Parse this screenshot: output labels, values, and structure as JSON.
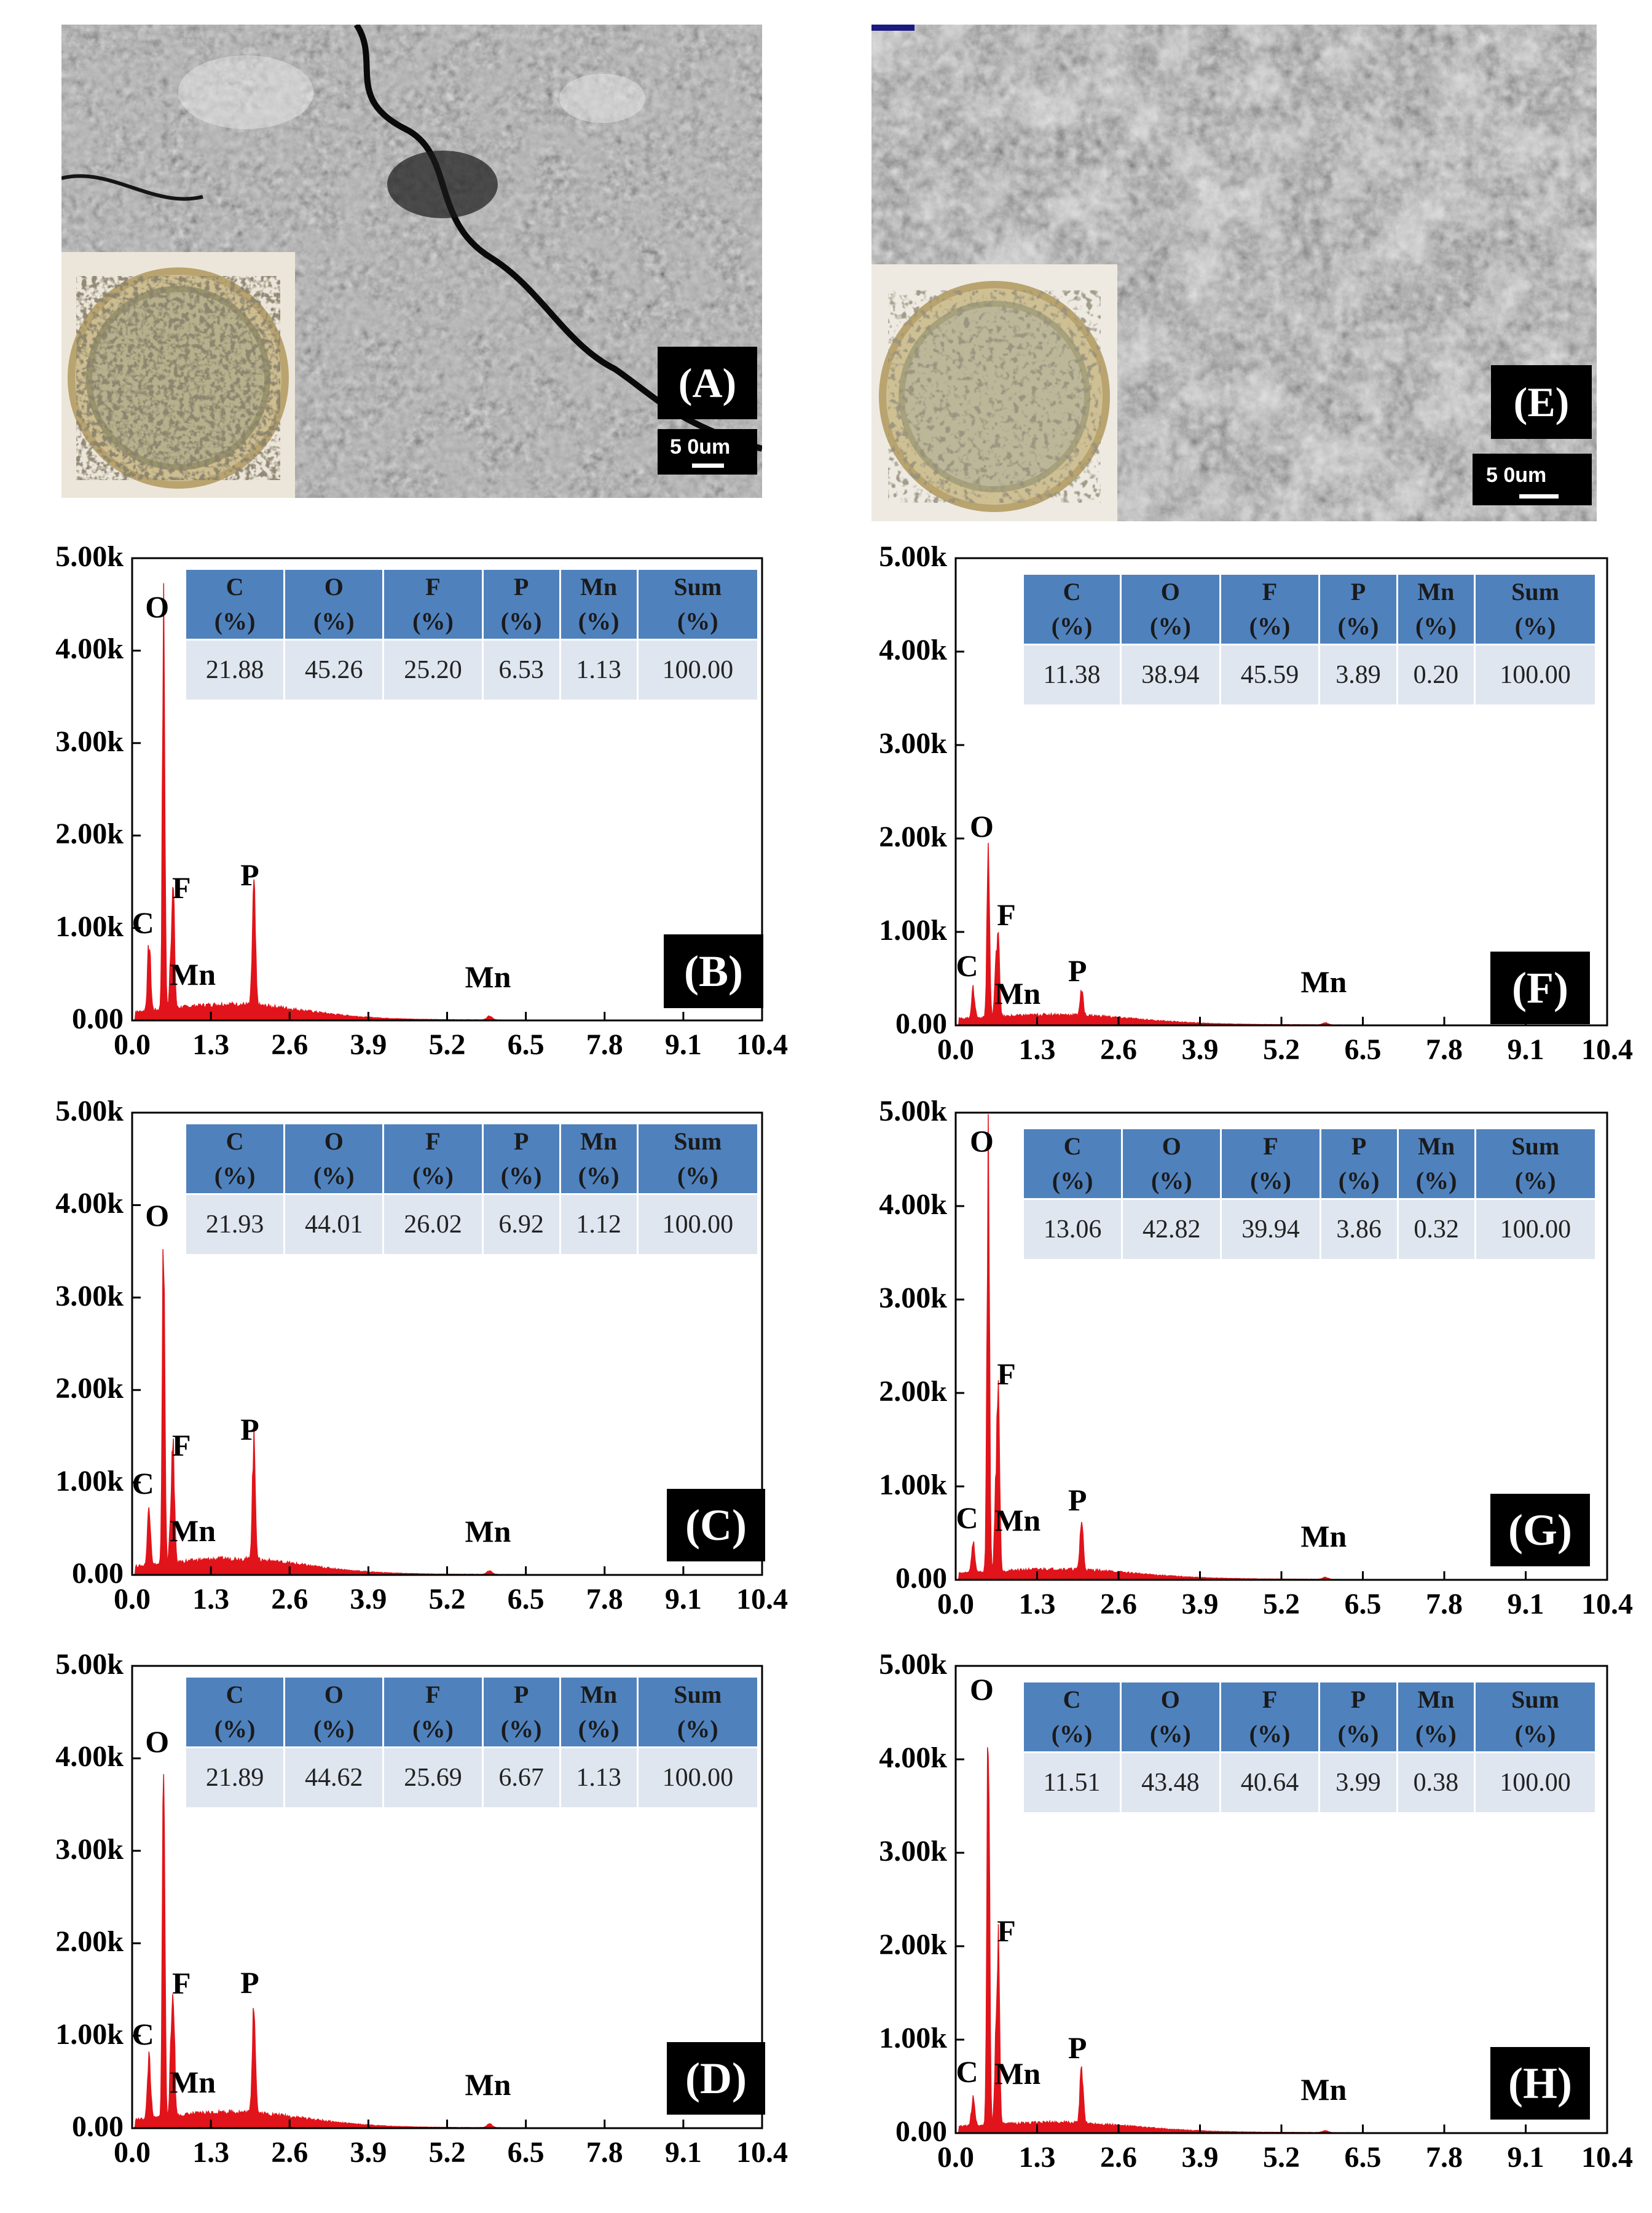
{
  "figure": {
    "sem_panels": [
      {
        "label": "(A)",
        "scale_text": "5 0um"
      },
      {
        "label": "(E)",
        "scale_text": "5 0um"
      }
    ],
    "table_headers": [
      {
        "element": "C",
        "unit": "(%)"
      },
      {
        "element": "O",
        "unit": "(%)"
      },
      {
        "element": "F",
        "unit": "(%)"
      },
      {
        "element": "P",
        "unit": "(%)"
      },
      {
        "element": "Mn",
        "unit": "(%)"
      },
      {
        "element": "Sum",
        "unit": "(%)"
      }
    ]
  },
  "chart_data": [
    {
      "type": "line",
      "panel_label": "(B)",
      "y_ticks": [
        "5.00k",
        "4.00k",
        "3.00k",
        "2.00k",
        "1.00k",
        "0.00"
      ],
      "x_ticks": [
        "0.0",
        "1.3",
        "2.6",
        "3.9",
        "5.2",
        "6.5",
        "7.8",
        "9.1",
        "10.4"
      ],
      "xlim": [
        0,
        10.4
      ],
      "ylim": [
        0,
        5000
      ],
      "peaks": [
        {
          "label": "C",
          "x": 0.28,
          "y": 720
        },
        {
          "label": "O",
          "x": 0.52,
          "y": 4120
        },
        {
          "label": "F",
          "x": 0.68,
          "y": 1150
        },
        {
          "label": "Mn",
          "x": 0.64,
          "y": 560
        },
        {
          "label": "P",
          "x": 2.01,
          "y": 1240
        },
        {
          "label": "Mn",
          "x": 5.9,
          "y": 40
        }
      ],
      "composition": [
        "21.88",
        "45.26",
        "25.20",
        "6.53",
        "1.13",
        "100.00"
      ]
    },
    {
      "type": "line",
      "panel_label": "(C)",
      "y_ticks": [
        "5.00k",
        "4.00k",
        "3.00k",
        "2.00k",
        "1.00k",
        "0.00"
      ],
      "x_ticks": [
        "0.0",
        "1.3",
        "2.6",
        "3.9",
        "5.2",
        "6.5",
        "7.8",
        "9.1",
        "10.4"
      ],
      "xlim": [
        0,
        10.4
      ],
      "ylim": [
        0,
        5000
      ],
      "peaks": [
        {
          "label": "C",
          "x": 0.28,
          "y": 650
        },
        {
          "label": "O",
          "x": 0.52,
          "y": 3540
        },
        {
          "label": "F",
          "x": 0.68,
          "y": 1120
        },
        {
          "label": "Mn",
          "x": 0.64,
          "y": 540
        },
        {
          "label": "P",
          "x": 2.01,
          "y": 1240
        },
        {
          "label": "Mn",
          "x": 5.9,
          "y": 40
        }
      ],
      "composition": [
        "21.93",
        "44.01",
        "26.02",
        "6.92",
        "1.12",
        "100.00"
      ]
    },
    {
      "type": "line",
      "panel_label": "(D)",
      "y_ticks": [
        "5.00k",
        "4.00k",
        "3.00k",
        "2.00k",
        "1.00k",
        "0.00"
      ],
      "x_ticks": [
        "0.0",
        "1.3",
        "2.6",
        "3.9",
        "5.2",
        "6.5",
        "7.8",
        "9.1",
        "10.4"
      ],
      "xlim": [
        0,
        10.4
      ],
      "ylim": [
        0,
        5000
      ],
      "peaks": [
        {
          "label": "C",
          "x": 0.28,
          "y": 680
        },
        {
          "label": "O",
          "x": 0.52,
          "y": 3830
        },
        {
          "label": "F",
          "x": 0.68,
          "y": 1280
        },
        {
          "label": "Mn",
          "x": 0.64,
          "y": 560
        },
        {
          "label": "P",
          "x": 2.01,
          "y": 1240
        },
        {
          "label": "Mn",
          "x": 5.9,
          "y": 40
        }
      ],
      "composition": [
        "21.89",
        "44.62",
        "25.69",
        "6.67",
        "1.13",
        "100.00"
      ]
    },
    {
      "type": "line",
      "panel_label": "(F)",
      "y_ticks": [
        "5.00k",
        "4.00k",
        "3.00k",
        "2.00k",
        "1.00k",
        "0.00"
      ],
      "x_ticks": [
        "0.0",
        "1.3",
        "2.6",
        "3.9",
        "5.2",
        "6.5",
        "7.8",
        "9.1",
        "10.4"
      ],
      "xlim": [
        0,
        10.4
      ],
      "ylim": [
        0,
        5000
      ],
      "peaks": [
        {
          "label": "C",
          "x": 0.28,
          "y": 300
        },
        {
          "label": "O",
          "x": 0.52,
          "y": 1780
        },
        {
          "label": "F",
          "x": 0.68,
          "y": 900
        },
        {
          "label": "Mn",
          "x": 0.64,
          "y": 400
        },
        {
          "label": "P",
          "x": 2.01,
          "y": 250
        },
        {
          "label": "Mn",
          "x": 5.9,
          "y": 20
        }
      ],
      "composition": [
        "11.38",
        "38.94",
        "45.59",
        "3.89",
        "0.20",
        "100.00"
      ]
    },
    {
      "type": "line",
      "panel_label": "(G)",
      "y_ticks": [
        "5.00k",
        "4.00k",
        "3.00k",
        "2.00k",
        "1.00k",
        "0.00"
      ],
      "x_ticks": [
        "0.0",
        "1.3",
        "2.6",
        "3.9",
        "5.2",
        "6.5",
        "7.8",
        "9.1",
        "10.4"
      ],
      "xlim": [
        0,
        10.4
      ],
      "ylim": [
        0,
        5000
      ],
      "peaks": [
        {
          "label": "C",
          "x": 0.28,
          "y": 330
        },
        {
          "label": "O",
          "x": 0.52,
          "y": 4350
        },
        {
          "label": "F",
          "x": 0.68,
          "y": 1920
        },
        {
          "label": "Mn",
          "x": 0.64,
          "y": 700
        },
        {
          "label": "P",
          "x": 2.01,
          "y": 520
        },
        {
          "label": "Mn",
          "x": 5.9,
          "y": 20
        }
      ],
      "composition": [
        "13.06",
        "42.82",
        "39.94",
        "3.86",
        "0.32",
        "100.00"
      ]
    },
    {
      "type": "line",
      "panel_label": "(H)",
      "y_ticks": [
        "5.00k",
        "4.00k",
        "3.00k",
        "2.00k",
        "1.00k",
        "0.00"
      ],
      "x_ticks": [
        "0.0",
        "1.3",
        "2.6",
        "3.9",
        "5.2",
        "6.5",
        "7.8",
        "9.1",
        "10.4"
      ],
      "xlim": [
        0,
        10.4
      ],
      "ylim": [
        0,
        5000
      ],
      "peaks": [
        {
          "label": "C",
          "x": 0.28,
          "y": 320
        },
        {
          "label": "O",
          "x": 0.52,
          "y": 4400
        },
        {
          "label": "F",
          "x": 0.68,
          "y": 1880
        },
        {
          "label": "Mn",
          "x": 0.64,
          "y": 700
        },
        {
          "label": "P",
          "x": 2.01,
          "y": 580
        },
        {
          "label": "Mn",
          "x": 5.9,
          "y": 20
        }
      ],
      "composition": [
        "11.51",
        "43.48",
        "40.64",
        "3.99",
        "0.38",
        "100.00"
      ]
    }
  ]
}
